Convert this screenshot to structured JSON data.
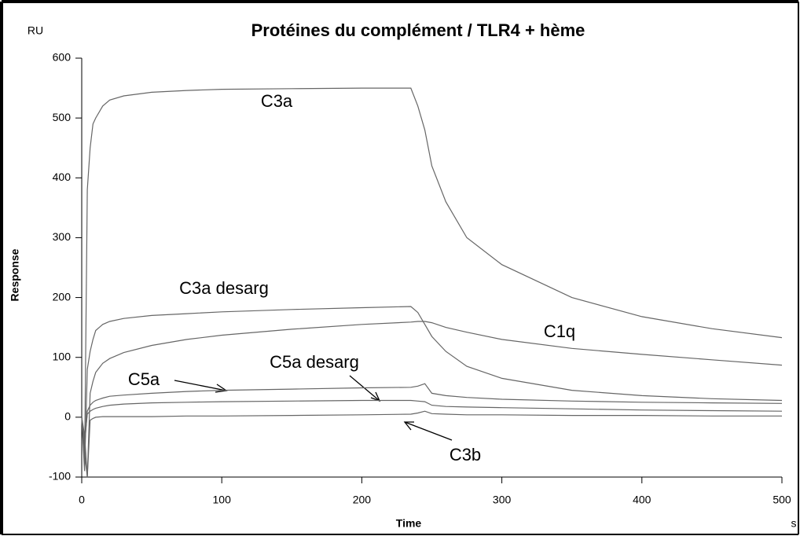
{
  "chart_data": {
    "type": "line",
    "title": "Protéines du complément / TLR4 + hème",
    "y_unit": "RU",
    "y_label": "Response",
    "x_label": "Time",
    "x_unit": "s",
    "x": [
      0,
      2,
      4,
      6,
      8,
      10,
      15,
      20,
      30,
      50,
      75,
      100,
      150,
      200,
      235,
      240,
      245,
      250,
      260,
      275,
      300,
      350,
      400,
      450,
      500
    ],
    "series": [
      {
        "name": "C3a",
        "color": "#666666",
        "values": [
          0,
          -80,
          380,
          450,
          490,
          500,
          520,
          530,
          537,
          543,
          546,
          548,
          549,
          550,
          550,
          520,
          480,
          420,
          360,
          300,
          255,
          200,
          168,
          148,
          133
        ]
      },
      {
        "name": "C3a desarg",
        "color": "#666666",
        "values": [
          0,
          -90,
          80,
          110,
          130,
          145,
          155,
          160,
          165,
          170,
          173,
          176,
          180,
          183,
          185,
          175,
          155,
          135,
          110,
          85,
          65,
          45,
          36,
          31,
          28
        ]
      },
      {
        "name": "C1q",
        "color": "#666666",
        "values": [
          0,
          -60,
          -100,
          40,
          60,
          75,
          90,
          98,
          108,
          120,
          130,
          137,
          147,
          155,
          159,
          160,
          160,
          158,
          150,
          142,
          130,
          115,
          105,
          96,
          87
        ]
      },
      {
        "name": "C5a",
        "color": "#666666",
        "values": [
          0,
          -50,
          10,
          20,
          25,
          28,
          32,
          35,
          37,
          40,
          43,
          45,
          47,
          49,
          50,
          52,
          56,
          40,
          36,
          33,
          30,
          27,
          25,
          24,
          23
        ]
      },
      {
        "name": "C5a desarg",
        "color": "#666666",
        "values": [
          0,
          -40,
          5,
          10,
          13,
          15,
          18,
          20,
          22,
          24,
          25,
          26,
          27,
          28,
          28,
          27,
          26,
          20,
          18,
          17,
          16,
          14,
          12,
          11,
          10
        ]
      },
      {
        "name": "C3b",
        "color": "#666666",
        "values": [
          0,
          -30,
          -100,
          -5,
          -2,
          0,
          1,
          1,
          1,
          1,
          2,
          2,
          3,
          4,
          5,
          7,
          10,
          6,
          5,
          4,
          4,
          3,
          3,
          2,
          2
        ]
      }
    ],
    "xlim": [
      0,
      500
    ],
    "xticks": [
      0,
      100,
      200,
      300,
      400,
      500
    ],
    "ylim": [
      -100,
      600
    ],
    "yticks": [
      -100,
      0,
      100,
      200,
      300,
      400,
      500,
      600
    ],
    "grid": false,
    "legend": false
  }
}
